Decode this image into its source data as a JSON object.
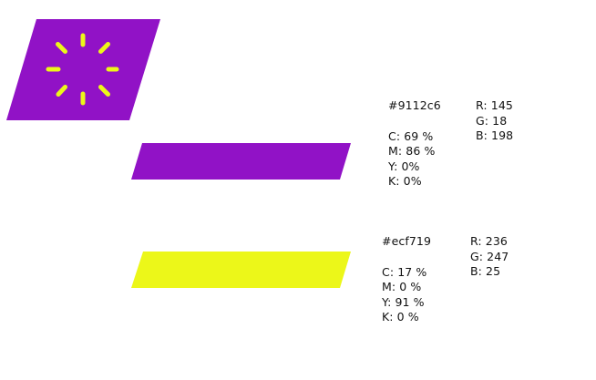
{
  "logo": {
    "icon": "loading-spinner-icon",
    "background_color": "#9112c6",
    "spinner_color": "#ecf719"
  },
  "colors": [
    {
      "hex_label": "#9112c6",
      "swatch_color": "#9112c6",
      "cmyk": {
        "c": "C: 69 %",
        "m": "M: 86 %",
        "y": "Y: 0%",
        "k": "K: 0%"
      },
      "rgb": {
        "r": "R: 145",
        "g": "G: 18",
        "b": "B: 198"
      }
    },
    {
      "hex_label": "#ecf719",
      "swatch_color": "#ecf719",
      "cmyk": {
        "c": "C: 17 %",
        "m": "M: 0 %",
        "y": "Y: 91 %",
        "k": "K: 0 %"
      },
      "rgb": {
        "r": "R: 236",
        "g": "G: 247",
        "b": "B: 25"
      }
    }
  ]
}
